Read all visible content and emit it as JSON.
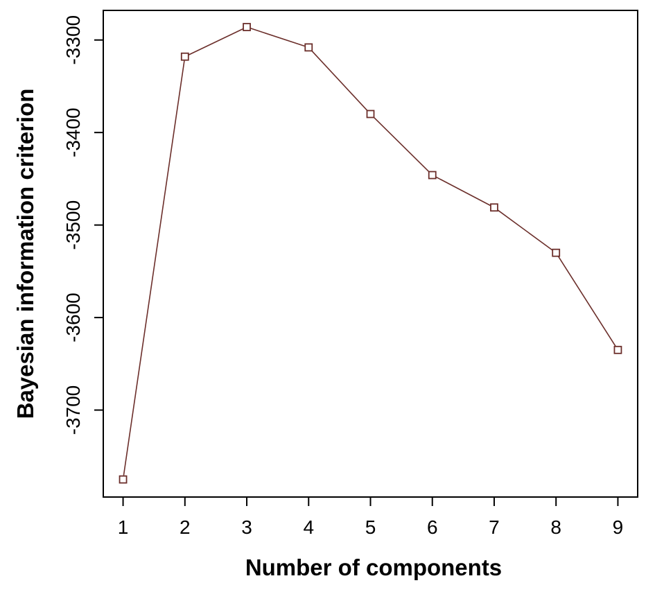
{
  "chart_data": {
    "type": "line",
    "title": "",
    "xlabel": "Number of components",
    "ylabel": "Bayesian information criterion",
    "x": [
      1,
      2,
      3,
      4,
      5,
      6,
      7,
      8,
      9
    ],
    "series": [
      {
        "values": [
          -3775,
          -3318,
          -3286,
          -3308,
          -3380,
          -3446,
          -3481,
          -3530,
          -3635
        ]
      }
    ],
    "x_ticks": [
      1,
      2,
      3,
      4,
      5,
      6,
      7,
      8,
      9
    ],
    "x_tick_labels": [
      "1",
      "2",
      "3",
      "4",
      "5",
      "6",
      "7",
      "8",
      "9"
    ],
    "y_ticks": [
      -3700,
      -3600,
      -3500,
      -3400,
      -3300
    ],
    "y_tick_labels": [
      "-3700",
      "-3600",
      "-3500",
      "-3400",
      "-3300"
    ],
    "xlim": [
      0.68,
      9.32
    ],
    "ylim": [
      -3794,
      -3268
    ],
    "grid": false,
    "legend": "none",
    "line_color": "#6b2e2a",
    "marker": "open-square"
  }
}
